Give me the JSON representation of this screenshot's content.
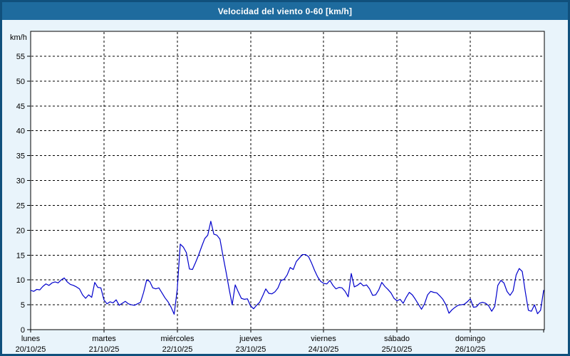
{
  "window": {
    "title": "Velocidad del viento 0-60 [km/h]"
  },
  "colors": {
    "header_bg": "#1e6b9e",
    "window_border": "#10507c",
    "page_bg": "#e9f4fb",
    "plot_bg": "#ffffff",
    "axis": "#000000",
    "grid": "#000000",
    "line": "#0000cc"
  },
  "chart_data": {
    "type": "line",
    "title": "Velocidad del viento 0-60 [km/h]",
    "ylabel": "km/h",
    "unit": "km/h",
    "ylim": [
      0,
      60
    ],
    "y_ticks": [
      0,
      5,
      10,
      15,
      20,
      25,
      30,
      35,
      40,
      45,
      50,
      55
    ],
    "grid": "dashed",
    "legend": "none",
    "x_days": [
      {
        "name": "lunes",
        "date": "20/10/25"
      },
      {
        "name": "martes",
        "date": "21/10/25"
      },
      {
        "name": "miércoles",
        "date": "22/10/25"
      },
      {
        "name": "jueves",
        "date": "23/10/25"
      },
      {
        "name": "viernes",
        "date": "24/10/25"
      },
      {
        "name": "sábado",
        "date": "25/10/25"
      },
      {
        "name": "domingo",
        "date": "26/10/25"
      }
    ],
    "samples_per_day": 24,
    "series": [
      {
        "name": "Velocidad del viento",
        "color": "#0000cc",
        "values": [
          7.9,
          7.7,
          8.1,
          8.0,
          8.7,
          9.2,
          8.9,
          9.4,
          9.6,
          9.4,
          10.0,
          10.4,
          9.6,
          9.1,
          8.9,
          8.6,
          8.2,
          7.0,
          6.3,
          7.0,
          6.5,
          9.5,
          8.5,
          8.4,
          6.0,
          5.2,
          5.6,
          5.4,
          6.0,
          4.9,
          5.3,
          5.7,
          5.2,
          5.0,
          4.9,
          5.2,
          5.5,
          7.5,
          10.0,
          9.7,
          8.4,
          8.2,
          8.4,
          7.4,
          6.4,
          5.6,
          4.5,
          3.1,
          8.0,
          17.2,
          16.6,
          15.5,
          12.2,
          12.1,
          13.5,
          15.0,
          16.7,
          18.3,
          19.0,
          21.8,
          19.2,
          19.0,
          18.2,
          14.8,
          11.6,
          8.2,
          5.0,
          9.0,
          7.6,
          6.3,
          6.1,
          6.2,
          4.8,
          4.2,
          4.9,
          5.5,
          6.8,
          8.2,
          7.3,
          7.2,
          7.6,
          8.4,
          9.9,
          10.1,
          11.0,
          12.5,
          12.1,
          13.7,
          14.4,
          15.1,
          15.1,
          14.7,
          13.4,
          11.9,
          10.6,
          9.7,
          9.3,
          9.2,
          9.9,
          8.9,
          8.2,
          8.5,
          8.4,
          7.7,
          6.6,
          11.3,
          8.6,
          8.9,
          9.4,
          8.8,
          9.0,
          8.2,
          6.9,
          7.0,
          8.0,
          9.5,
          8.7,
          8.1,
          7.4,
          6.3,
          5.8,
          6.1,
          5.3,
          6.5,
          7.5,
          7.0,
          6.1,
          5.1,
          4.1,
          5.2,
          7.0,
          7.7,
          7.5,
          7.4,
          6.8,
          6.1,
          5.0,
          3.3,
          4.0,
          4.5,
          4.9,
          5.0,
          5.1,
          5.6,
          6.2,
          4.5,
          4.6,
          5.3,
          5.5,
          5.3,
          4.8,
          3.7,
          4.7,
          8.9,
          9.9,
          9.4,
          7.7,
          6.9,
          7.8,
          11.0,
          12.3,
          11.7,
          7.6,
          3.9,
          3.7,
          5.0,
          3.2,
          3.9,
          7.9
        ]
      }
    ]
  }
}
